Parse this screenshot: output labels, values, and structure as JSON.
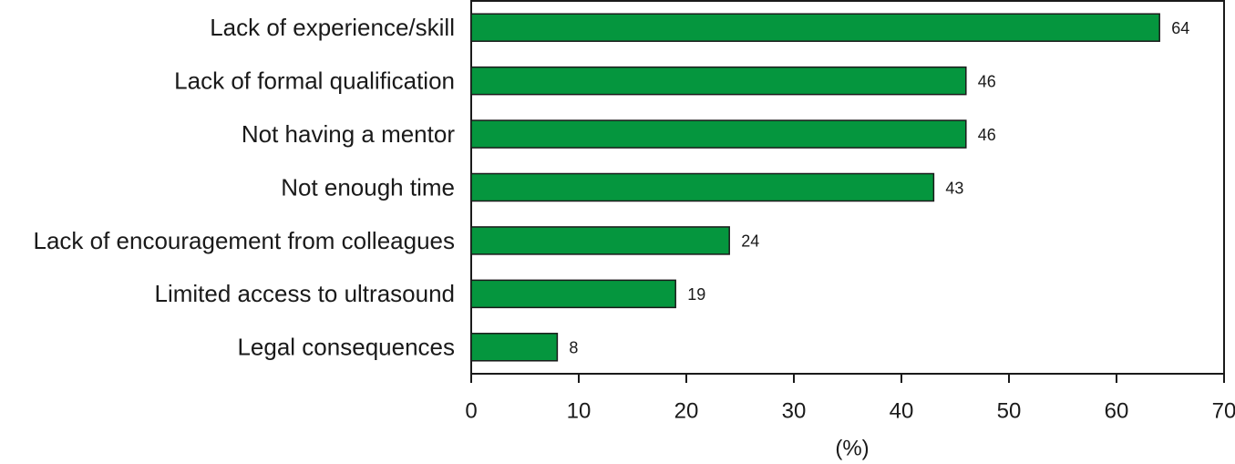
{
  "chart_data": {
    "type": "bar",
    "orientation": "horizontal",
    "categories": [
      "Lack of experience/skill",
      "Lack of formal qualification",
      "Not having a mentor",
      "Not enough time",
      "Lack of encouragement from colleagues",
      "Limited access to ultrasound",
      "Legal consequences"
    ],
    "values": [
      64,
      46,
      46,
      43,
      24,
      19,
      8
    ],
    "color": "#05963e",
    "xlabel": "(%)",
    "xlim": [
      0,
      70
    ],
    "xticks": [
      0,
      10,
      20,
      30,
      40,
      50,
      60,
      70
    ]
  }
}
